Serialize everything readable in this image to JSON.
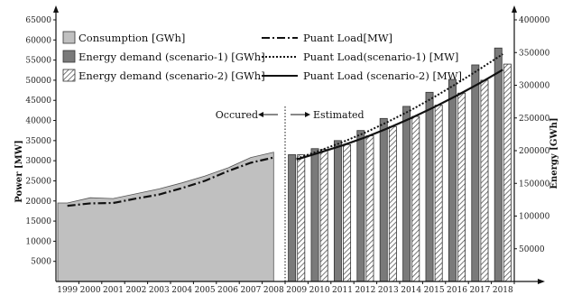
{
  "chart_data": {
    "type": "bar",
    "categories": [
      "1999",
      "2000",
      "2001",
      "2002",
      "2003",
      "2004",
      "2005",
      "2006",
      "2007",
      "2008",
      "2009",
      "2010",
      "2011",
      "2012",
      "2013",
      "2014",
      "2015",
      "2016",
      "2017",
      "2018"
    ],
    "left_axis": {
      "label": "Power [MW]",
      "range": [
        0,
        65000
      ],
      "ticks": [
        "5000",
        "10000",
        "15000",
        "20000",
        "25000",
        "30000",
        "35000",
        "40000",
        "45000",
        "50000",
        "55000",
        "60000",
        "65000"
      ]
    },
    "right_axis": {
      "label": "Energy [GWh]",
      "range": [
        0,
        400000
      ],
      "ticks": [
        "50000",
        "100000",
        "150000",
        "200000",
        "250000",
        "300000",
        "350000",
        "400000"
      ]
    },
    "series": [
      {
        "name": "Consumption [GWh]",
        "type": "area",
        "axis": "left",
        "x": [
          "1999",
          "2000",
          "2001",
          "2002",
          "2003",
          "2004",
          "2005",
          "2006",
          "2007",
          "2008"
        ],
        "values": [
          19500,
          20800,
          20600,
          21800,
          23000,
          24500,
          26200,
          28200,
          30800,
          32100
        ]
      },
      {
        "name": "Energy demand (scenario-1) [GWh]",
        "type": "bar",
        "axis": "left",
        "x": [
          "2009",
          "2010",
          "2011",
          "2012",
          "2013",
          "2014",
          "2015",
          "2016",
          "2017",
          "2018"
        ],
        "values": [
          31500,
          33000,
          35000,
          37500,
          40500,
          43500,
          47000,
          50200,
          53800,
          58000
        ]
      },
      {
        "name": "Energy demand (scenario-2) [GWh]",
        "type": "bar",
        "axis": "left",
        "x": [
          "2009",
          "2010",
          "2011",
          "2012",
          "2013",
          "2014",
          "2015",
          "2016",
          "2017",
          "2018"
        ],
        "values": [
          31500,
          32800,
          34000,
          36200,
          38500,
          41000,
          43800,
          46800,
          50000,
          54000
        ]
      },
      {
        "name": "Puant Load[MW]",
        "type": "line",
        "style": "dash-dot",
        "axis": "left",
        "x": [
          "1999",
          "2000",
          "2001",
          "2002",
          "2003",
          "2004",
          "2005",
          "2006",
          "2007",
          "2008"
        ],
        "values": [
          18800,
          19400,
          19500,
          20600,
          21600,
          23200,
          25000,
          27400,
          29500,
          30800
        ]
      },
      {
        "name": "Puant Load(scenario-1) [MW]",
        "type": "line",
        "style": "dotted",
        "axis": "left",
        "x": [
          "2009",
          "2010",
          "2011",
          "2012",
          "2013",
          "2014",
          "2015",
          "2016",
          "2017",
          "2018"
        ],
        "values": [
          30500,
          32500,
          34600,
          37000,
          39700,
          42600,
          45800,
          49200,
          52800,
          56500
        ]
      },
      {
        "name": "Puant Load (scenario-2) [MW]",
        "type": "line",
        "style": "solid",
        "axis": "left",
        "x": [
          "2009",
          "2010",
          "2011",
          "2012",
          "2013",
          "2014",
          "2015",
          "2016",
          "2017",
          "2018"
        ],
        "values": [
          30300,
          32000,
          33800,
          35800,
          38100,
          40600,
          43300,
          46200,
          49300,
          52600
        ]
      }
    ],
    "annotations": [
      {
        "text": "Occured",
        "arrow": "left"
      },
      {
        "text": "Estimated",
        "arrow": "right"
      }
    ],
    "divider_between": [
      "2008",
      "2009"
    ],
    "legend": "top-left, two columns",
    "grid": "vertical lines on occurred years"
  },
  "colors": {
    "area_fill": "#c0c0c0",
    "bar_s1": "#7a7a7a",
    "bar_s2_hatch": "#555555",
    "line": "#111111"
  }
}
